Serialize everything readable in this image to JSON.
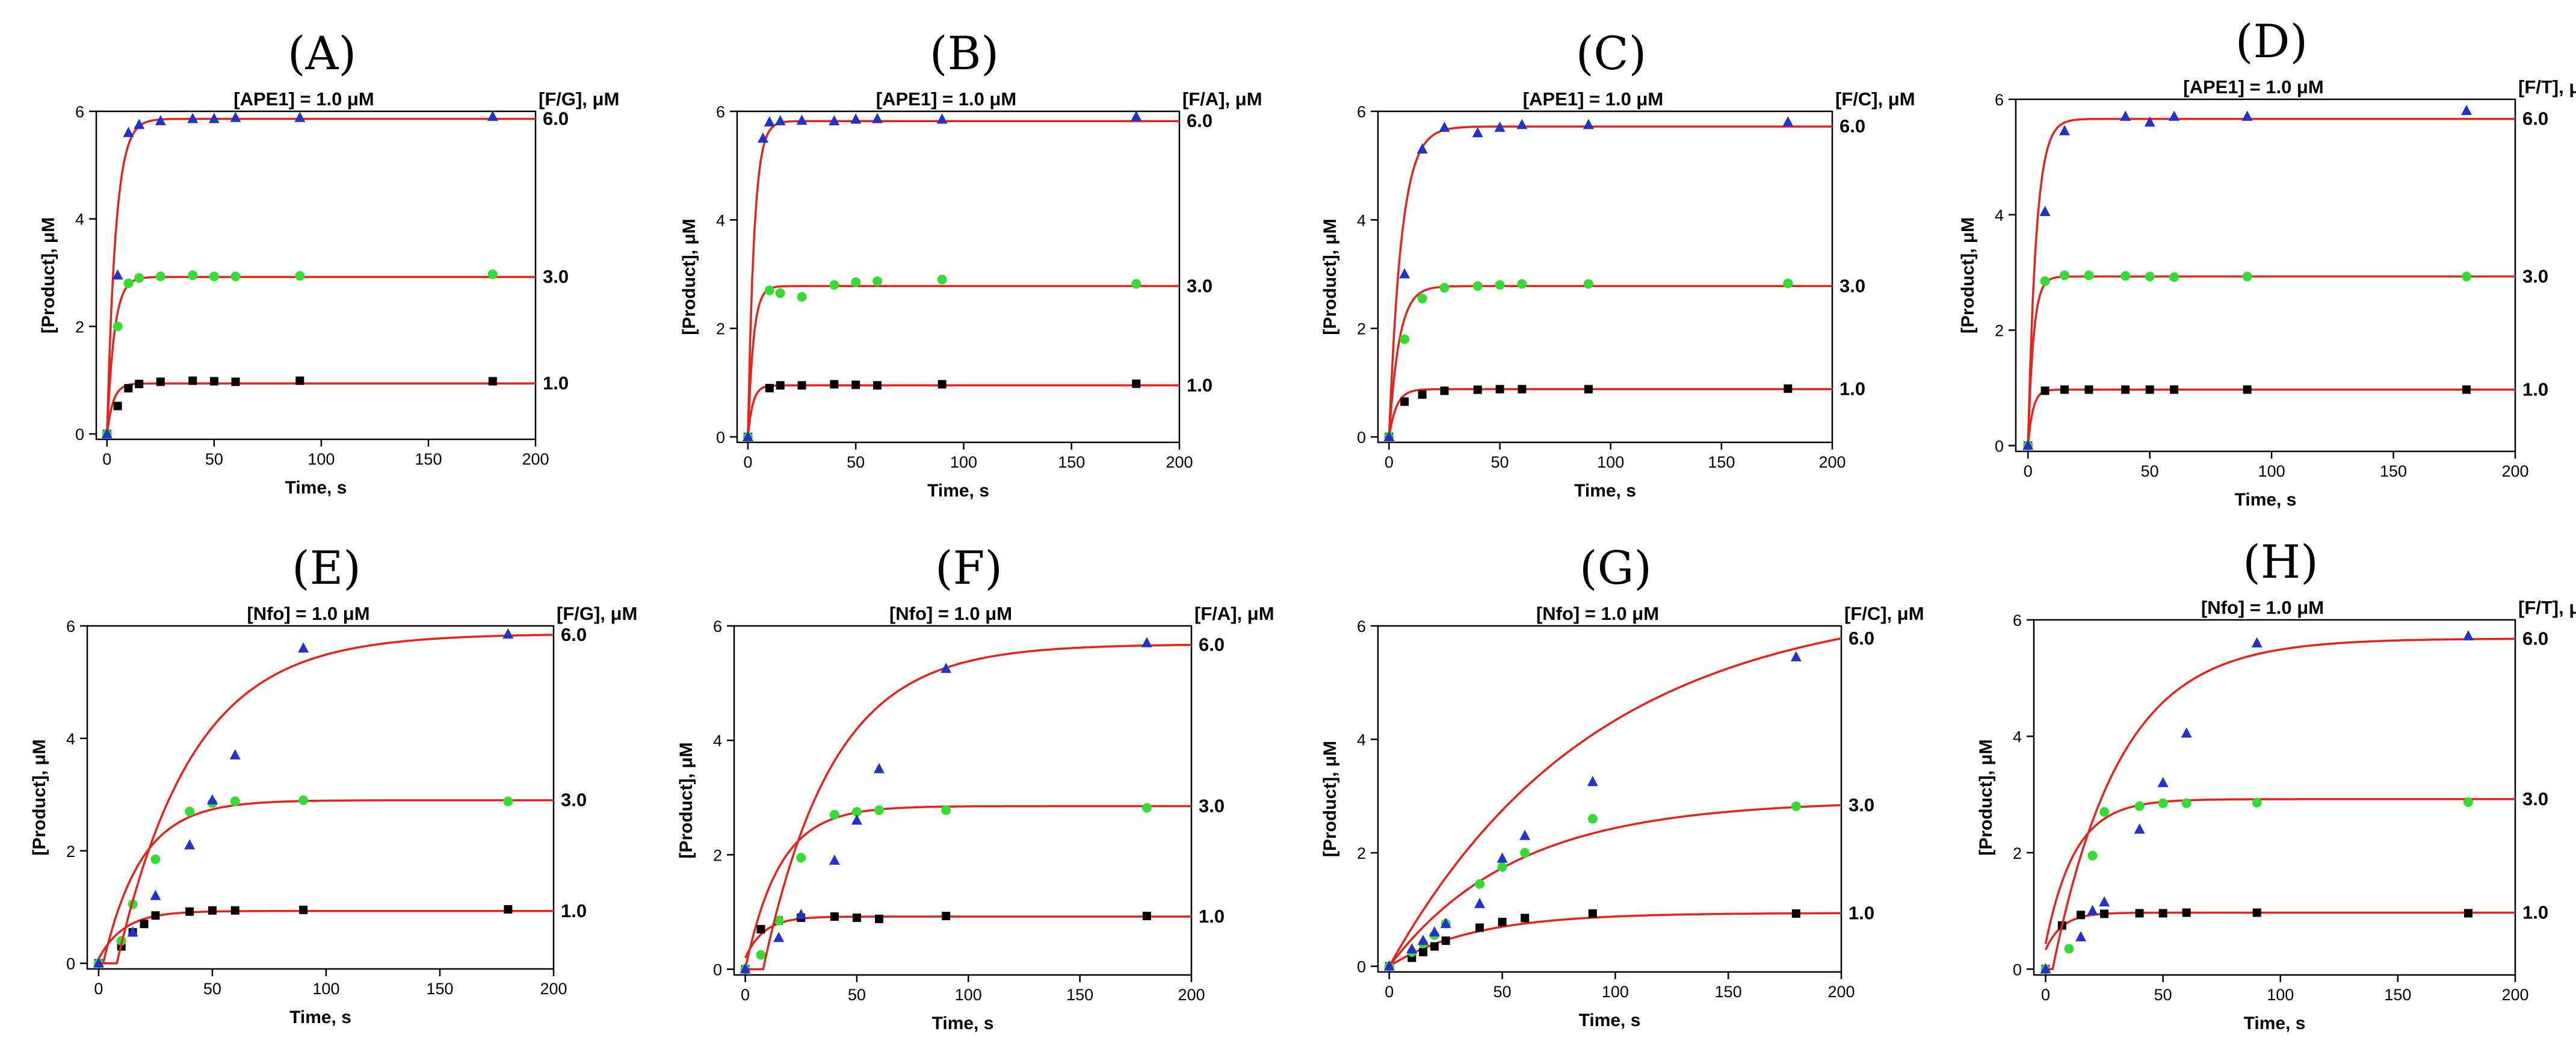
{
  "chart_data": [
    {
      "panel": "(A)",
      "type": "line",
      "enzyme_label": "[APE1] = 1.0 μM",
      "substrate_label": "[F/G], μM",
      "xlabel": "Time, s",
      "ylabel": "[Product], μM",
      "xlim": [
        -5,
        200
      ],
      "ylim": [
        -0.1,
        6
      ],
      "xticks": [
        0,
        50,
        100,
        150,
        200
      ],
      "yticks": [
        0,
        2,
        4,
        6
      ],
      "series": [
        {
          "name": "1.0",
          "marker": "square",
          "color": "#000000",
          "x": [
            0,
            5,
            10,
            15,
            25,
            40,
            50,
            60,
            90,
            180
          ],
          "y": [
            0,
            0.52,
            0.85,
            0.93,
            0.97,
            0.99,
            0.98,
            0.97,
            0.99,
            0.98
          ],
          "plateau": 0.94,
          "k": 0.35,
          "delay": 0
        },
        {
          "name": "3.0",
          "marker": "circle",
          "color": "#33dd33",
          "x": [
            0,
            5,
            10,
            15,
            25,
            40,
            50,
            60,
            90,
            180
          ],
          "y": [
            0,
            2.0,
            2.8,
            2.9,
            2.93,
            2.95,
            2.93,
            2.93,
            2.94,
            2.97
          ],
          "plateau": 2.92,
          "k": 0.3,
          "delay": 0
        },
        {
          "name": "6.0",
          "marker": "triangle",
          "color": "#2233cc",
          "x": [
            0,
            5,
            10,
            15,
            25,
            40,
            50,
            60,
            90,
            180
          ],
          "y": [
            0,
            2.95,
            5.6,
            5.75,
            5.82,
            5.86,
            5.86,
            5.88,
            5.88,
            5.9
          ],
          "plateau": 5.86,
          "k": 0.25,
          "delay": 0
        }
      ]
    },
    {
      "panel": "(B)",
      "type": "line",
      "enzyme_label": "[APE1] = 1.0 μM",
      "substrate_label": "[F/A], μM",
      "xlabel": "Time, s",
      "ylabel": "[Product], μM",
      "xlim": [
        -5,
        200
      ],
      "ylim": [
        -0.1,
        6
      ],
      "xticks": [
        0,
        50,
        100,
        150,
        200
      ],
      "yticks": [
        0,
        2,
        4,
        6
      ],
      "series": [
        {
          "name": "1.0",
          "marker": "square",
          "color": "#000000",
          "x": [
            0,
            10,
            15,
            25,
            40,
            50,
            60,
            90,
            180
          ],
          "y": [
            0,
            0.9,
            0.95,
            0.95,
            0.97,
            0.96,
            0.95,
            0.97,
            0.98
          ],
          "plateau": 0.95,
          "k": 0.45,
          "delay": 0
        },
        {
          "name": "3.0",
          "marker": "circle",
          "color": "#33dd33",
          "x": [
            0,
            10,
            15,
            25,
            40,
            50,
            60,
            90,
            180
          ],
          "y": [
            0,
            2.7,
            2.65,
            2.58,
            2.8,
            2.85,
            2.87,
            2.9,
            2.82
          ],
          "plateau": 2.78,
          "k": 0.4,
          "delay": 0
        },
        {
          "name": "6.0",
          "marker": "triangle",
          "color": "#2233cc",
          "x": [
            0,
            7,
            10,
            15,
            25,
            40,
            50,
            60,
            90,
            180
          ],
          "y": [
            0,
            5.5,
            5.8,
            5.82,
            5.83,
            5.82,
            5.85,
            5.86,
            5.85,
            5.9
          ],
          "plateau": 5.82,
          "k": 0.35,
          "delay": 0
        }
      ]
    },
    {
      "panel": "(C)",
      "type": "line",
      "enzyme_label": "[APE1] = 1.0 μM",
      "substrate_label": "[F/C], μM",
      "xlabel": "Time, s",
      "ylabel": "[Product], μM",
      "xlim": [
        -5,
        200
      ],
      "ylim": [
        -0.1,
        6
      ],
      "xticks": [
        0,
        50,
        100,
        150,
        200
      ],
      "yticks": [
        0,
        2,
        4,
        6
      ],
      "series": [
        {
          "name": "1.0",
          "marker": "square",
          "color": "#000000",
          "x": [
            0,
            7,
            15,
            25,
            40,
            50,
            60,
            90,
            180
          ],
          "y": [
            0,
            0.65,
            0.78,
            0.85,
            0.87,
            0.88,
            0.88,
            0.88,
            0.89
          ],
          "plateau": 0.88,
          "k": 0.3,
          "delay": 0
        },
        {
          "name": "3.0",
          "marker": "circle",
          "color": "#33dd33",
          "x": [
            0,
            7,
            15,
            25,
            40,
            50,
            60,
            90,
            180
          ],
          "y": [
            0,
            1.8,
            2.55,
            2.75,
            2.78,
            2.8,
            2.82,
            2.82,
            2.83
          ],
          "plateau": 2.78,
          "k": 0.22,
          "delay": 0
        },
        {
          "name": "6.0",
          "marker": "triangle",
          "color": "#2233cc",
          "x": [
            0,
            7,
            15,
            25,
            40,
            50,
            60,
            90,
            180
          ],
          "y": [
            0,
            3.0,
            5.3,
            5.7,
            5.6,
            5.7,
            5.75,
            5.75,
            5.8
          ],
          "plateau": 5.72,
          "k": 0.18,
          "delay": 0
        }
      ]
    },
    {
      "panel": "(D)",
      "type": "line",
      "enzyme_label": "[APE1] = 1.0 μM",
      "substrate_label": "[F/T], μM",
      "xlabel": "Time, s",
      "ylabel": "[Product], μM",
      "xlim": [
        -5,
        200
      ],
      "ylim": [
        -0.1,
        6
      ],
      "xticks": [
        0,
        50,
        100,
        150,
        200
      ],
      "yticks": [
        0,
        2,
        4,
        6
      ],
      "series": [
        {
          "name": "1.0",
          "marker": "square",
          "color": "#000000",
          "x": [
            0,
            7,
            15,
            25,
            40,
            50,
            60,
            90,
            180
          ],
          "y": [
            0,
            0.95,
            0.97,
            0.97,
            0.97,
            0.97,
            0.97,
            0.97,
            0.97
          ],
          "plateau": 0.97,
          "k": 0.5,
          "delay": 0
        },
        {
          "name": "3.0",
          "marker": "circle",
          "color": "#33dd33",
          "x": [
            0,
            7,
            15,
            25,
            40,
            50,
            60,
            90,
            180
          ],
          "y": [
            0,
            2.85,
            2.95,
            2.95,
            2.94,
            2.93,
            2.92,
            2.93,
            2.93
          ],
          "plateau": 2.93,
          "k": 0.45,
          "delay": 0
        },
        {
          "name": "6.0",
          "marker": "triangle",
          "color": "#2233cc",
          "x": [
            0,
            7,
            15,
            40,
            50,
            60,
            90,
            180
          ],
          "y": [
            0,
            4.05,
            5.45,
            5.7,
            5.6,
            5.7,
            5.7,
            5.8
          ],
          "plateau": 5.66,
          "k": 0.3,
          "delay": 0
        }
      ]
    },
    {
      "panel": "(E)",
      "type": "line",
      "enzyme_label": "[Nfo] = 1.0 μM",
      "substrate_label": "[F/G], μM",
      "xlabel": "Time, s",
      "ylabel": "[Product], μM",
      "xlim": [
        -5,
        200
      ],
      "ylim": [
        -0.1,
        6
      ],
      "xticks": [
        0,
        50,
        100,
        150,
        200
      ],
      "yticks": [
        0,
        2,
        4,
        6
      ],
      "series": [
        {
          "name": "1.0",
          "marker": "square",
          "color": "#000000",
          "x": [
            0,
            10,
            15,
            20,
            25,
            40,
            50,
            60,
            90,
            180
          ],
          "y": [
            0,
            0.3,
            0.55,
            0.7,
            0.85,
            0.92,
            0.94,
            0.94,
            0.95,
            0.96
          ],
          "plateau": 0.93,
          "k": 0.09,
          "delay": -1
        },
        {
          "name": "3.0",
          "marker": "circle",
          "color": "#33dd33",
          "x": [
            0,
            10,
            15,
            25,
            40,
            50,
            60,
            90,
            180
          ],
          "y": [
            0,
            0.4,
            1.05,
            1.85,
            2.7,
            2.85,
            2.88,
            2.9,
            2.88
          ],
          "plateau": 2.9,
          "k": 0.06,
          "delay": 2
        },
        {
          "name": "6.0",
          "marker": "triangle",
          "color": "#2233cc",
          "x": [
            0,
            15,
            25,
            40,
            50,
            60,
            90,
            180
          ],
          "y": [
            0,
            0.55,
            1.2,
            2.1,
            2.9,
            3.7,
            5.6,
            5.85
          ],
          "plateau": 5.86,
          "k": 0.03,
          "delay": 8
        }
      ]
    },
    {
      "panel": "(F)",
      "type": "line",
      "enzyme_label": "[Nfo] = 1.0 μM",
      "substrate_label": "[F/A], μM",
      "xlabel": "Time, s",
      "ylabel": "[Product], μM",
      "xlim": [
        -5,
        200
      ],
      "ylim": [
        -0.1,
        6
      ],
      "xticks": [
        0,
        50,
        100,
        150,
        200
      ],
      "yticks": [
        0,
        2,
        4,
        6
      ],
      "series": [
        {
          "name": "1.0",
          "marker": "square",
          "color": "#000000",
          "x": [
            0,
            7,
            15,
            25,
            40,
            50,
            60,
            90,
            180
          ],
          "y": [
            0,
            0.7,
            0.85,
            0.9,
            0.92,
            0.9,
            0.88,
            0.93,
            0.93
          ],
          "plateau": 0.92,
          "k": 0.12,
          "delay": -2
        },
        {
          "name": "3.0",
          "marker": "circle",
          "color": "#33dd33",
          "x": [
            0,
            7,
            15,
            25,
            40,
            50,
            60,
            90,
            180
          ],
          "y": [
            0,
            0.25,
            0.85,
            1.95,
            2.7,
            2.75,
            2.78,
            2.78,
            2.82
          ],
          "plateau": 2.85,
          "k": 0.065,
          "delay": 0
        },
        {
          "name": "6.0",
          "marker": "triangle",
          "color": "#2233cc",
          "x": [
            0,
            15,
            25,
            40,
            50,
            60,
            90,
            180
          ],
          "y": [
            0,
            0.55,
            0.95,
            1.9,
            2.6,
            3.5,
            5.25,
            5.7
          ],
          "plateau": 5.68,
          "k": 0.032,
          "delay": 8
        }
      ]
    },
    {
      "panel": "(G)",
      "type": "line",
      "enzyme_label": "[Nfo] = 1.0 μM",
      "substrate_label": "[F/C], μM",
      "xlabel": "Time, s",
      "ylabel": "[Product], μM",
      "xlim": [
        -5,
        200
      ],
      "ylim": [
        -0.1,
        6
      ],
      "xticks": [
        0,
        50,
        100,
        150,
        200
      ],
      "yticks": [
        0,
        2,
        4,
        6
      ],
      "series": [
        {
          "name": "1.0",
          "marker": "square",
          "color": "#000000",
          "x": [
            0,
            10,
            15,
            20,
            25,
            40,
            50,
            60,
            90,
            180
          ],
          "y": [
            0,
            0.15,
            0.25,
            0.35,
            0.45,
            0.68,
            0.78,
            0.85,
            0.93,
            0.93
          ],
          "plateau": 0.94,
          "k": 0.027,
          "delay": 0
        },
        {
          "name": "3.0",
          "marker": "circle",
          "color": "#33dd33",
          "x": [
            0,
            10,
            15,
            20,
            25,
            40,
            50,
            60,
            90,
            180
          ],
          "y": [
            0,
            0.25,
            0.4,
            0.55,
            0.75,
            1.45,
            1.75,
            2.0,
            2.6,
            2.82
          ],
          "plateau": 2.92,
          "k": 0.018,
          "delay": 0
        },
        {
          "name": "6.0",
          "marker": "triangle",
          "color": "#2233cc",
          "x": [
            0,
            10,
            15,
            20,
            25,
            40,
            50,
            60,
            90,
            180
          ],
          "y": [
            0,
            0.3,
            0.45,
            0.6,
            0.75,
            1.1,
            1.9,
            2.3,
            3.25,
            5.45
          ],
          "plateau": 6.5,
          "k": 0.011,
          "delay": 0
        }
      ]
    },
    {
      "panel": "(H)",
      "type": "line",
      "enzyme_label": "[Nfo] = 1.0 μM",
      "substrate_label": "[F/T], μM",
      "xlabel": "Time, s",
      "ylabel": "[Product], μM",
      "xlim": [
        -5,
        200
      ],
      "ylim": [
        -0.1,
        6
      ],
      "xticks": [
        0,
        50,
        100,
        150,
        200
      ],
      "yticks": [
        0,
        2,
        4,
        6
      ],
      "series": [
        {
          "name": "1.0",
          "marker": "square",
          "color": "#000000",
          "x": [
            0,
            7,
            15,
            25,
            40,
            50,
            60,
            90,
            180
          ],
          "y": [
            0,
            0.75,
            0.93,
            0.95,
            0.96,
            0.96,
            0.97,
            0.97,
            0.96
          ],
          "plateau": 0.97,
          "k": 0.14,
          "delay": -3
        },
        {
          "name": "3.0",
          "marker": "circle",
          "color": "#33dd33",
          "x": [
            0,
            10,
            20,
            25,
            40,
            50,
            60,
            90,
            180
          ],
          "y": [
            0,
            0.35,
            1.95,
            2.7,
            2.8,
            2.85,
            2.85,
            2.86,
            2.87
          ],
          "plateau": 2.92,
          "k": 0.08,
          "delay": -2
        },
        {
          "name": "6.0",
          "marker": "triangle",
          "color": "#2233cc",
          "x": [
            0,
            15,
            20,
            25,
            40,
            50,
            60,
            90,
            180
          ],
          "y": [
            0,
            0.55,
            1.0,
            1.15,
            2.4,
            3.2,
            4.05,
            5.6,
            5.72
          ],
          "plateau": 5.68,
          "k": 0.035,
          "delay": 3
        }
      ]
    }
  ]
}
